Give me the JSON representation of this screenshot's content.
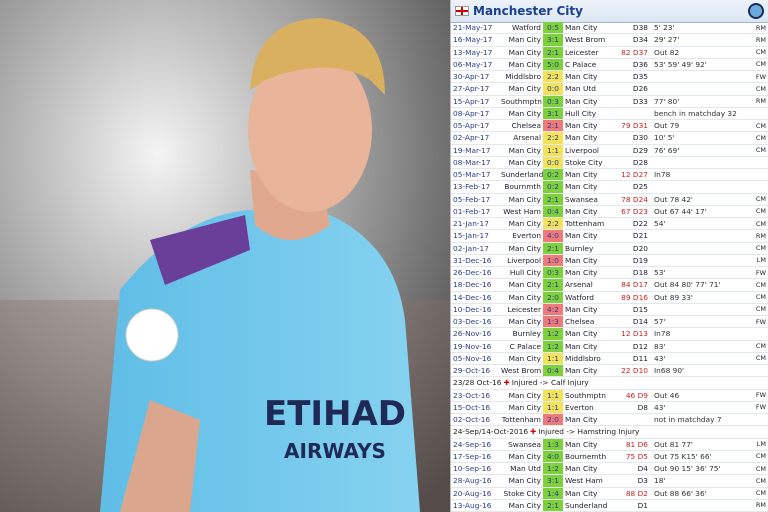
{
  "photo": {
    "sponsor": "ETIHAD",
    "sponsor2": "AIRWAYS"
  },
  "header": {
    "title": "Manchester City"
  },
  "matches": [
    {
      "date": "21-May-17",
      "home": "Watford",
      "score": "0:5",
      "away": "Man City",
      "md": "D38",
      "notes": "5' 23'",
      "pos": "RM",
      "color": "#7fd13b"
    },
    {
      "date": "16-May-17",
      "home": "Man City",
      "score": "3:1",
      "away": "West Brom",
      "md": "D34",
      "notes": "29' 27'",
      "pos": "RM",
      "color": "#7fd13b"
    },
    {
      "date": "13-May-17",
      "home": "Man City",
      "score": "2:1",
      "away": "Leicester",
      "md": "82 D37",
      "notes": "Out 82",
      "pos": "CM",
      "color": "#7fd13b"
    },
    {
      "date": "06-May-17",
      "home": "Man City",
      "score": "5:0",
      "away": "C Palace",
      "md": "D36",
      "notes": "53' 59' 49' 92'",
      "pos": "CM",
      "color": "#7fd13b"
    },
    {
      "date": "30-Apr-17",
      "home": "Middlsbro",
      "score": "2:2",
      "away": "Man City",
      "md": "D35",
      "pos": "FW",
      "color": "#f2e35a"
    },
    {
      "date": "27-Apr-17",
      "home": "Man City",
      "score": "0:0",
      "away": "Man Utd",
      "md": "D26",
      "pos": "CM",
      "color": "#f2e35a"
    },
    {
      "date": "15-Apr-17",
      "home": "Southmptn",
      "score": "0:3",
      "away": "Man City",
      "md": "D33",
      "notes": "77' 80'",
      "pos": "RM",
      "color": "#7fd13b"
    },
    {
      "date": "08-Apr-17",
      "home": "Man City",
      "score": "3:1",
      "away": "Hull City",
      "notes": "bench in matchday 32",
      "color": "#7fd13b"
    },
    {
      "date": "05-Apr-17",
      "home": "Chelsea",
      "score": "2:1",
      "away": "Man City",
      "md": "79 D31",
      "notes": "Out 79",
      "pos": "CM",
      "color": "#f07a7a"
    },
    {
      "date": "02-Apr-17",
      "home": "Arsenal",
      "score": "2:2",
      "away": "Man City",
      "md": "D30",
      "notes": "10' 5'",
      "pos": "CM",
      "color": "#f2e35a"
    },
    {
      "date": "19-Mar-17",
      "home": "Man City",
      "score": "1:1",
      "away": "Liverpool",
      "md": "D29",
      "notes": "76' 69'",
      "pos": "CM",
      "color": "#f2e35a"
    },
    {
      "date": "08-Mar-17",
      "home": "Man City",
      "score": "0:0",
      "away": "Stoke City",
      "md": "D28",
      "color": "#f2e35a"
    },
    {
      "date": "05-Mar-17",
      "home": "Sunderland",
      "score": "0:2",
      "away": "Man City",
      "md": "12 D27",
      "notes": "In78",
      "color": "#7fd13b"
    },
    {
      "date": "13-Feb-17",
      "home": "Bournmth",
      "score": "0:2",
      "away": "Man City",
      "md": "D25",
      "color": "#7fd13b"
    },
    {
      "date": "05-Feb-17",
      "home": "Man City",
      "score": "2:1",
      "away": "Swansea",
      "md": "78 D24",
      "notes": "Out 78 42'",
      "pos": "CM",
      "color": "#7fd13b"
    },
    {
      "date": "01-Feb-17",
      "home": "West Ham",
      "score": "0:4",
      "away": "Man City",
      "md": "67 D23",
      "notes": "Out 67 44' 17'",
      "pos": "CM",
      "color": "#7fd13b"
    },
    {
      "date": "21-Jan-17",
      "home": "Man City",
      "score": "2:2",
      "away": "Tottenham",
      "md": "D22",
      "notes": "54'",
      "pos": "CM",
      "color": "#f2e35a"
    },
    {
      "date": "15-Jan-17",
      "home": "Everton",
      "score": "4:0",
      "away": "Man City",
      "md": "D21",
      "pos": "RM",
      "color": "#f07a7a"
    },
    {
      "date": "02-Jan-17",
      "home": "Man City",
      "score": "2:1",
      "away": "Burnley",
      "md": "D20",
      "pos": "CM",
      "color": "#7fd13b"
    },
    {
      "date": "31-Dec-16",
      "home": "Liverpool",
      "score": "1:0",
      "away": "Man City",
      "md": "D19",
      "pos": "LM",
      "color": "#f07a7a"
    },
    {
      "date": "26-Dec-16",
      "home": "Hull City",
      "score": "0:3",
      "away": "Man City",
      "md": "D18",
      "notes": "53'",
      "pos": "FW",
      "color": "#7fd13b"
    },
    {
      "date": "18-Dec-16",
      "home": "Man City",
      "score": "2:1",
      "away": "Arsenal",
      "md": "84 D17",
      "notes": "Out 84 80' 77' 71'",
      "pos": "CM",
      "color": "#7fd13b"
    },
    {
      "date": "14-Dec-16",
      "home": "Man City",
      "score": "2:0",
      "away": "Watford",
      "md": "89 D16",
      "notes": "Out 89 33'",
      "pos": "CM",
      "color": "#7fd13b"
    },
    {
      "date": "10-Dec-16",
      "home": "Leicester",
      "score": "4:2",
      "away": "Man City",
      "md": "D15",
      "pos": "CM",
      "color": "#f07a7a"
    },
    {
      "date": "03-Dec-16",
      "home": "Man City",
      "score": "1:3",
      "away": "Chelsea",
      "md": "D14",
      "notes": "57'",
      "pos": "FW",
      "color": "#f07a7a"
    },
    {
      "date": "26-Nov-16",
      "home": "Burnley",
      "score": "1:2",
      "away": "Man City",
      "md": "12 D13",
      "notes": "In78",
      "color": "#7fd13b"
    },
    {
      "date": "19-Nov-16",
      "home": "C Palace",
      "score": "1:2",
      "away": "Man City",
      "md": "D12",
      "notes": "83'",
      "pos": "CM",
      "color": "#7fd13b"
    },
    {
      "date": "05-Nov-16",
      "home": "Man City",
      "score": "1:1",
      "away": "Middlsbro",
      "md": "D11",
      "notes": "43'",
      "pos": "CM",
      "color": "#f2e35a"
    },
    {
      "date": "29-Oct-16",
      "home": "West Brom",
      "score": "0:4",
      "away": "Man City",
      "md": "22 D10",
      "notes": "In68 90'",
      "color": "#7fd13b"
    },
    {
      "date": "23/28 Oct-16",
      "note": "Injured -> Calf Injury"
    },
    {
      "date": "23-Oct-16",
      "home": "Man City",
      "score": "1:1",
      "away": "Southmptn",
      "md": "46 D9",
      "notes": "Out 46",
      "pos": "FW",
      "color": "#f2e35a"
    },
    {
      "date": "15-Oct-16",
      "home": "Man City",
      "score": "1:1",
      "away": "Everton",
      "md": "D8",
      "notes": "43'",
      "pos": "FW",
      "color": "#f2e35a"
    },
    {
      "date": "02-Oct-16",
      "home": "Tottenham",
      "score": "2:0",
      "away": "Man City",
      "notes": "not in matchday 7",
      "color": "#f07a7a"
    },
    {
      "date": "24-Sep/14-Oct-2016",
      "note": "Injured -> Hamstring Injury"
    },
    {
      "date": "24-Sep-16",
      "home": "Swansea",
      "score": "1:3",
      "away": "Man City",
      "md": "81 D6",
      "notes": "Out 81 77'",
      "pos": "LM",
      "color": "#7fd13b"
    },
    {
      "date": "17-Sep-16",
      "home": "Man City",
      "score": "4:0",
      "away": "Bournemth",
      "md": "75 D5",
      "notes": "Out 75 K15' 66'",
      "pos": "CM",
      "color": "#7fd13b"
    },
    {
      "date": "10-Sep-16",
      "home": "Man Utd",
      "score": "1:2",
      "away": "Man City",
      "md": "D4",
      "notes": "Out 90 15' 36' 75'",
      "pos": "CM",
      "color": "#7fd13b"
    },
    {
      "date": "28-Aug-16",
      "home": "Man City",
      "score": "3:1",
      "away": "West Ham",
      "md": "D3",
      "notes": "18'",
      "pos": "CM",
      "color": "#7fd13b"
    },
    {
      "date": "20-Aug-16",
      "home": "Stoke City",
      "score": "1:4",
      "away": "Man City",
      "md": "88 D2",
      "notes": "Out 88 66' 36'",
      "pos": "CM",
      "color": "#7fd13b"
    },
    {
      "date": "13-Aug-16",
      "home": "Man City",
      "score": "2:1",
      "away": "Sunderland",
      "md": "D1",
      "pos": "RM",
      "color": "#7fd13b"
    }
  ]
}
